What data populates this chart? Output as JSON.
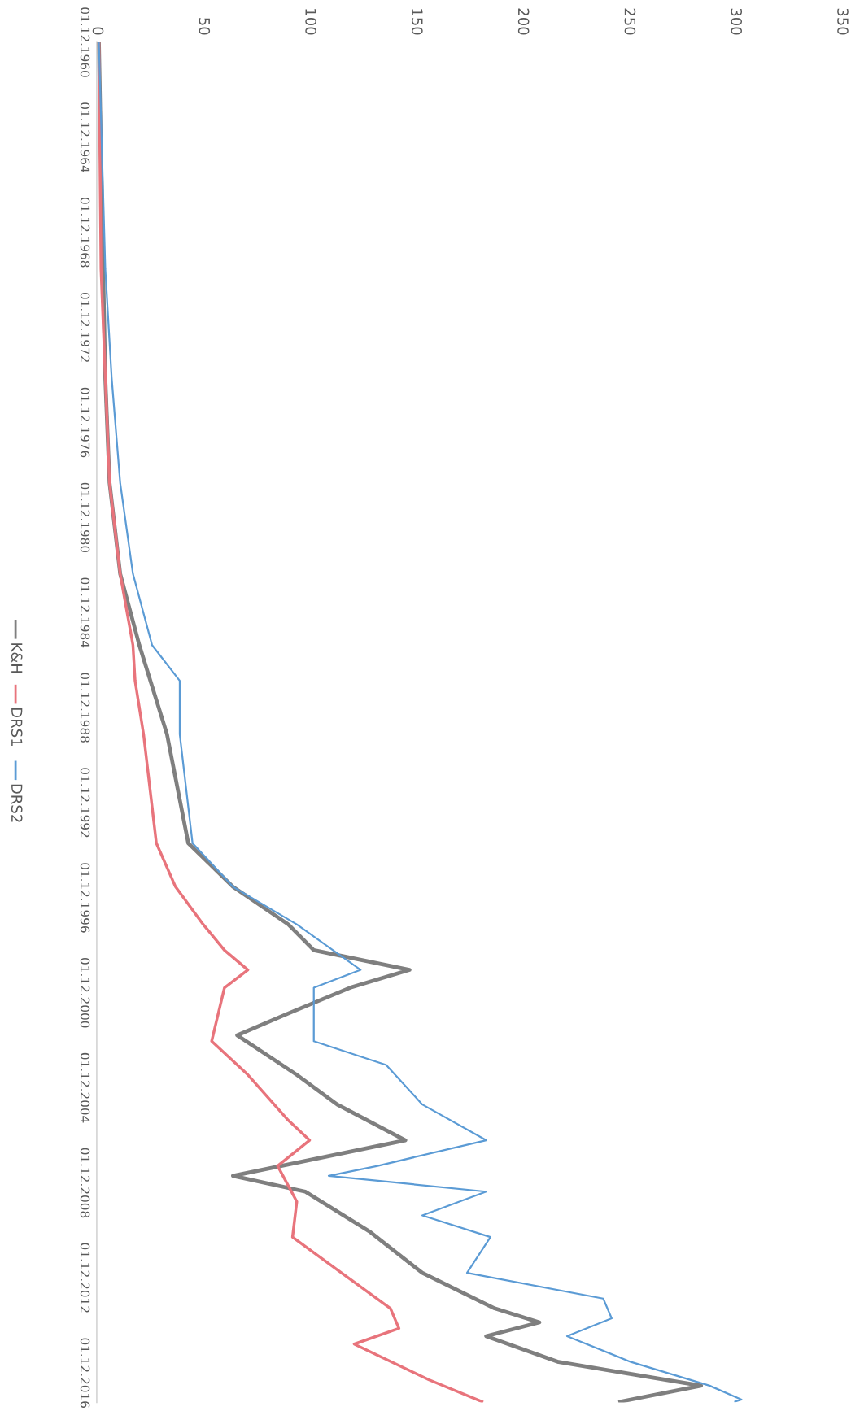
{
  "chart_data": {
    "type": "line",
    "orientation": "horizontal",
    "xlim": [
      0,
      350
    ],
    "xticks": [
      0,
      50,
      100,
      150,
      200,
      250,
      300,
      350
    ],
    "ylim": [
      "2018-03-01",
      "1960-12-01"
    ],
    "yticks": [
      {
        "value": "1960-12-01",
        "label": "01.12.1960"
      },
      {
        "value": "1964-12-01",
        "label": "01.12.1964"
      },
      {
        "value": "1968-12-01",
        "label": "01.12.1968"
      },
      {
        "value": "1972-12-01",
        "label": "01.12.1972"
      },
      {
        "value": "1976-12-01",
        "label": "01.12.1976"
      },
      {
        "value": "1980-12-01",
        "label": "01.12.1980"
      },
      {
        "value": "1984-12-01",
        "label": "01.12.1984"
      },
      {
        "value": "1988-12-01",
        "label": "01.12.1988"
      },
      {
        "value": "1992-12-01",
        "label": "01.12.1992"
      },
      {
        "value": "1996-12-01",
        "label": "01.12.1996"
      },
      {
        "value": "2000-12-01",
        "label": "01.12.2000"
      },
      {
        "value": "2004-12-01",
        "label": "01.12.2004"
      },
      {
        "value": "2008-12-01",
        "label": "01.12.2008"
      },
      {
        "value": "2012-12-01",
        "label": "01.12.2012"
      },
      {
        "value": "2016-12-01",
        "label": "01.12.2016"
      }
    ],
    "grid": false,
    "legend": "left",
    "marker": "none",
    "line_style": "solid",
    "series": [
      {
        "name": "K&H",
        "color": "#7f7f7f",
        "x": [
          "1960-12-01",
          "1970-06",
          "1975-01",
          "1979-06",
          "1983-04",
          "1986-04",
          "1990-01",
          "1994-08",
          "1996-06",
          "1998-01",
          "1999-02",
          "1999-12",
          "2000-09",
          "2001-10",
          "2002-09",
          "2004-05",
          "2005-08",
          "2007-02",
          "2008-08",
          "2009-04",
          "2010-12",
          "2012-09",
          "2014-03",
          "2014-10",
          "2015-05",
          "2016-06",
          "2017-06",
          "2018-02"
        ],
        "values": [
          1,
          3,
          4,
          6,
          11,
          20,
          33,
          43,
          64,
          90,
          102,
          147,
          119,
          90,
          66,
          94,
          113,
          145,
          64,
          98,
          128,
          153,
          187,
          208,
          183,
          217,
          284,
          246
        ]
      },
      {
        "name": "DRS1",
        "color": "#e8747c",
        "x": [
          "1960-12-01",
          "1970-06",
          "1979-06",
          "1983-04",
          "1986-04",
          "1987-10",
          "1990-01",
          "1994-08",
          "1996-06",
          "1998-01",
          "1999-02",
          "1999-12",
          "2000-09",
          "2002-12",
          "2004-05",
          "2006-04",
          "2007-02",
          "2008-03",
          "2009-09",
          "2011-03",
          "2012-09",
          "2014-03",
          "2015-01",
          "2015-09",
          "2017-03",
          "2018-02"
        ],
        "values": [
          1,
          2,
          6,
          11,
          17,
          18,
          22,
          28,
          37,
          50,
          60,
          71,
          60,
          54,
          71,
          90,
          100,
          85,
          94,
          92,
          115,
          138,
          142,
          121,
          156,
          181
        ]
      },
      {
        "name": "DRS2",
        "color": "#5b9bd5",
        "x": [
          "1960-12-01",
          "1970-06",
          "1975-01",
          "1979-06",
          "1983-04",
          "1986-04",
          "1987-10",
          "1990-01",
          "1994-08",
          "1996-06",
          "1998-01",
          "1999-02",
          "1999-12",
          "2000-09",
          "2002-12",
          "2003-12",
          "2005-08",
          "2007-02",
          "2008-03",
          "2008-08",
          "2009-04",
          "2010-04",
          "2011-03",
          "2012-09",
          "2013-10",
          "2014-08",
          "2015-05",
          "2016-06",
          "2017-06",
          "2018-01",
          "2018-02"
        ],
        "values": [
          1,
          4,
          7,
          11,
          17,
          26,
          39,
          39,
          45,
          64,
          94,
          111,
          124,
          102,
          102,
          136,
          153,
          183,
          132,
          109,
          183,
          153,
          185,
          174,
          238,
          242,
          221,
          251,
          288,
          303,
          300
        ]
      }
    ]
  }
}
